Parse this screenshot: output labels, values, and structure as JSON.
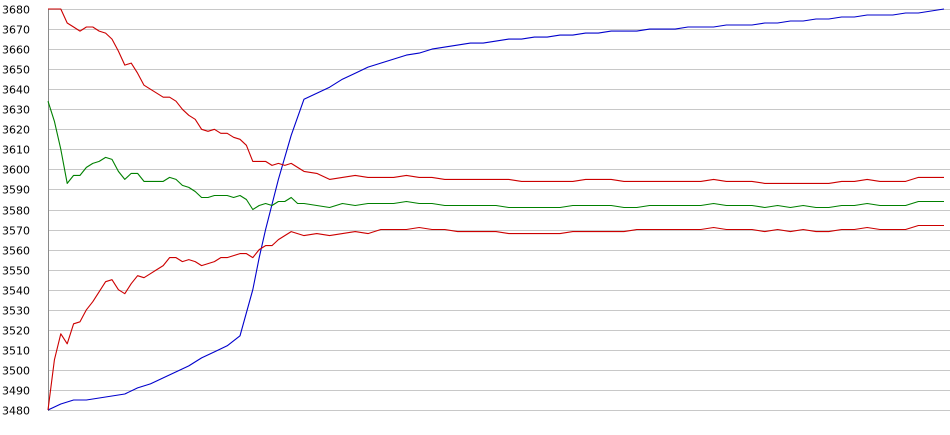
{
  "chart_data": {
    "type": "line",
    "title": "",
    "xlabel": "",
    "ylabel": "",
    "ylim": [
      3480,
      3680
    ],
    "yticks": [
      3480,
      3490,
      3500,
      3510,
      3520,
      3530,
      3540,
      3550,
      3560,
      3570,
      3580,
      3590,
      3600,
      3610,
      3620,
      3630,
      3640,
      3650,
      3660,
      3670,
      3680
    ],
    "grid": true,
    "legend": "none",
    "series": [
      {
        "color": "#0000cc",
        "x": [
          0,
          2,
          4,
          6,
          8,
          10,
          12,
          14,
          16,
          18,
          20,
          22,
          24,
          26,
          28,
          30,
          32,
          33,
          34,
          36,
          38,
          40,
          42,
          44,
          46,
          48,
          50,
          52,
          54,
          56,
          58,
          60,
          62,
          64,
          66,
          68,
          70,
          72,
          74,
          76,
          78,
          80,
          82,
          84,
          86,
          88,
          90,
          92,
          94,
          96,
          98,
          100,
          102,
          104,
          106,
          108,
          110,
          112,
          114,
          116,
          118,
          120,
          122,
          124,
          126,
          128,
          130,
          132,
          134,
          136,
          138,
          140
        ],
        "y": [
          3480,
          3483,
          3485,
          3485,
          3486,
          3487,
          3488,
          3491,
          3493,
          3496,
          3499,
          3502,
          3506,
          3509,
          3512,
          3517,
          3540,
          3556,
          3570,
          3595,
          3617,
          3635,
          3638,
          3641,
          3645,
          3648,
          3651,
          3653,
          3655,
          3657,
          3658,
          3660,
          3661,
          3662,
          3663,
          3663,
          3664,
          3665,
          3665,
          3666,
          3666,
          3667,
          3667,
          3668,
          3668,
          3669,
          3669,
          3669,
          3670,
          3670,
          3670,
          3671,
          3671,
          3671,
          3672,
          3672,
          3672,
          3673,
          3673,
          3674,
          3674,
          3675,
          3675,
          3676,
          3676,
          3677,
          3677,
          3677,
          3678,
          3678,
          3679,
          3680
        ]
      },
      {
        "color": "#cc0000",
        "x": [
          0,
          1,
          2,
          3,
          4,
          5,
          6,
          7,
          8,
          9,
          10,
          11,
          12,
          13,
          14,
          15,
          16,
          17,
          18,
          19,
          20,
          21,
          22,
          23,
          24,
          25,
          26,
          27,
          28,
          29,
          30,
          31,
          32,
          33,
          34,
          35,
          36,
          37,
          38,
          39,
          40,
          42,
          44,
          46,
          48,
          50,
          52,
          54,
          56,
          58,
          60,
          62,
          64,
          66,
          68,
          70,
          72,
          74,
          76,
          78,
          80,
          82,
          84,
          86,
          88,
          90,
          92,
          94,
          96,
          98,
          100,
          102,
          104,
          106,
          108,
          110,
          112,
          114,
          116,
          118,
          120,
          122,
          124,
          126,
          128,
          130,
          132,
          134,
          136,
          138,
          140
        ],
        "y": [
          3680,
          3680,
          3680,
          3673,
          3671,
          3669,
          3671,
          3671,
          3669,
          3668,
          3665,
          3659,
          3652,
          3653,
          3648,
          3642,
          3640,
          3638,
          3636,
          3636,
          3634,
          3630,
          3627,
          3625,
          3620,
          3619,
          3620,
          3618,
          3618,
          3616,
          3615,
          3612,
          3604,
          3604,
          3604,
          3602,
          3603,
          3602,
          3603,
          3601,
          3599,
          3598,
          3595,
          3596,
          3597,
          3596,
          3596,
          3596,
          3597,
          3596,
          3596,
          3595,
          3595,
          3595,
          3595,
          3595,
          3595,
          3594,
          3594,
          3594,
          3594,
          3594,
          3595,
          3595,
          3595,
          3594,
          3594,
          3594,
          3594,
          3594,
          3594,
          3594,
          3595,
          3594,
          3594,
          3594,
          3593,
          3593,
          3593,
          3593,
          3593,
          3593,
          3594,
          3594,
          3595,
          3594,
          3594,
          3594,
          3596,
          3596,
          3596
        ]
      },
      {
        "color": "#008000",
        "x": [
          0,
          1,
          2,
          3,
          4,
          5,
          6,
          7,
          8,
          9,
          10,
          11,
          12,
          13,
          14,
          15,
          16,
          17,
          18,
          19,
          20,
          21,
          22,
          23,
          24,
          25,
          26,
          27,
          28,
          29,
          30,
          31,
          32,
          33,
          34,
          35,
          36,
          37,
          38,
          39,
          40,
          42,
          44,
          46,
          48,
          50,
          52,
          54,
          56,
          58,
          60,
          62,
          64,
          66,
          68,
          70,
          72,
          74,
          76,
          78,
          80,
          82,
          84,
          86,
          88,
          90,
          92,
          94,
          96,
          98,
          100,
          102,
          104,
          106,
          108,
          110,
          112,
          114,
          116,
          118,
          120,
          122,
          124,
          126,
          128,
          130,
          132,
          134,
          136,
          138,
          140
        ],
        "y": [
          3634,
          3624,
          3610,
          3593,
          3597,
          3597,
          3601,
          3603,
          3604,
          3606,
          3605,
          3599,
          3595,
          3598,
          3598,
          3594,
          3594,
          3594,
          3594,
          3596,
          3595,
          3592,
          3591,
          3589,
          3586,
          3586,
          3587,
          3587,
          3587,
          3586,
          3587,
          3585,
          3580,
          3582,
          3583,
          3582,
          3584,
          3584,
          3586,
          3583,
          3583,
          3582,
          3581,
          3583,
          3582,
          3583,
          3583,
          3583,
          3584,
          3583,
          3583,
          3582,
          3582,
          3582,
          3582,
          3582,
          3581,
          3581,
          3581,
          3581,
          3581,
          3582,
          3582,
          3582,
          3582,
          3581,
          3581,
          3582,
          3582,
          3582,
          3582,
          3582,
          3583,
          3582,
          3582,
          3582,
          3581,
          3582,
          3581,
          3582,
          3581,
          3581,
          3582,
          3582,
          3583,
          3582,
          3582,
          3582,
          3584,
          3584,
          3584
        ]
      },
      {
        "color": "#cc0000",
        "x": [
          0,
          1,
          2,
          3,
          4,
          5,
          6,
          7,
          8,
          9,
          10,
          11,
          12,
          13,
          14,
          15,
          16,
          17,
          18,
          19,
          20,
          21,
          22,
          23,
          24,
          25,
          26,
          27,
          28,
          29,
          30,
          31,
          32,
          33,
          34,
          35,
          36,
          37,
          38,
          39,
          40,
          42,
          44,
          46,
          48,
          50,
          52,
          54,
          56,
          58,
          60,
          62,
          64,
          66,
          68,
          70,
          72,
          74,
          76,
          78,
          80,
          82,
          84,
          86,
          88,
          90,
          92,
          94,
          96,
          98,
          100,
          102,
          104,
          106,
          108,
          110,
          112,
          114,
          116,
          118,
          120,
          122,
          124,
          126,
          128,
          130,
          132,
          134,
          136,
          138,
          140
        ],
        "y": [
          3480,
          3505,
          3518,
          3513,
          3523,
          3524,
          3530,
          3534,
          3539,
          3544,
          3545,
          3540,
          3538,
          3543,
          3547,
          3546,
          3548,
          3550,
          3552,
          3556,
          3556,
          3554,
          3555,
          3554,
          3552,
          3553,
          3554,
          3556,
          3556,
          3557,
          3558,
          3558,
          3556,
          3560,
          3562,
          3562,
          3565,
          3567,
          3569,
          3568,
          3567,
          3568,
          3567,
          3568,
          3569,
          3568,
          3570,
          3570,
          3570,
          3571,
          3570,
          3570,
          3569,
          3569,
          3569,
          3569,
          3568,
          3568,
          3568,
          3568,
          3568,
          3569,
          3569,
          3569,
          3569,
          3569,
          3570,
          3570,
          3570,
          3570,
          3570,
          3570,
          3571,
          3570,
          3570,
          3570,
          3569,
          3570,
          3569,
          3570,
          3569,
          3569,
          3570,
          3570,
          3571,
          3570,
          3570,
          3570,
          3572,
          3572,
          3572
        ]
      }
    ]
  }
}
